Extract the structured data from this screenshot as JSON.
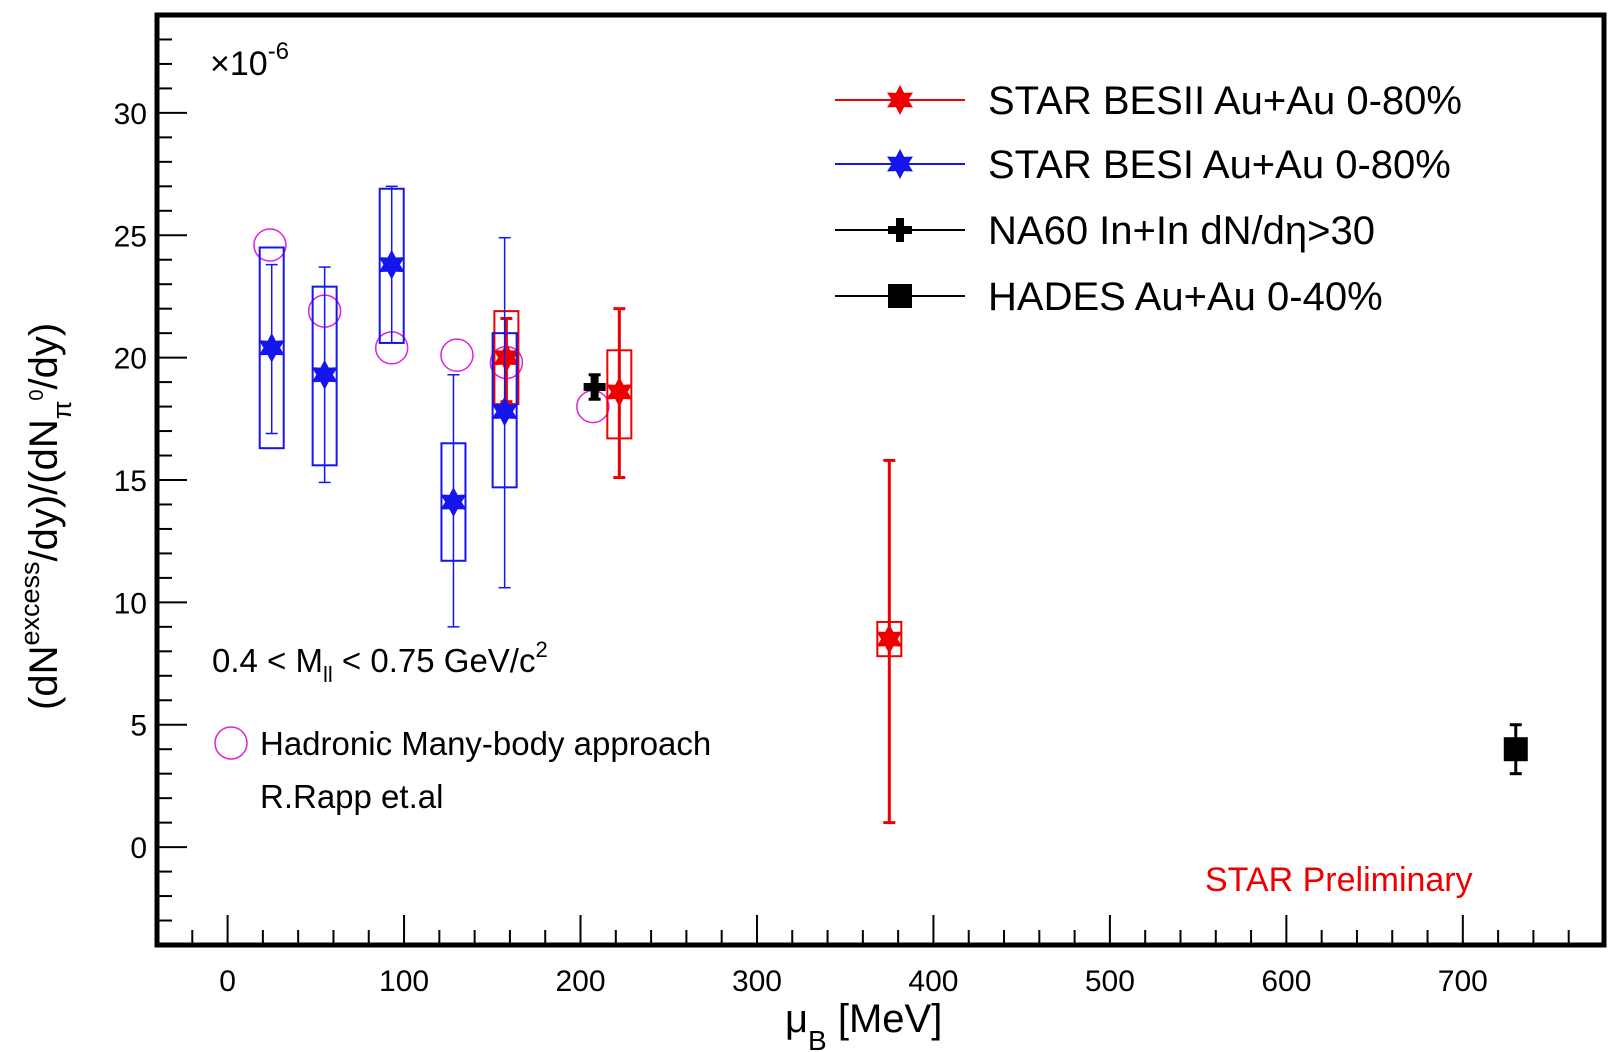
{
  "chart_data": {
    "type": "scatter",
    "title": "",
    "multiplier": {
      "base": "×10",
      "exponent": "-6"
    },
    "xlabel": {
      "main": "μ",
      "sub": "B",
      "rest": " [MeV]"
    },
    "ylabel": {
      "p1": "(dN",
      "sup1": "excess",
      "p2": "/dy)/(dN",
      "sub2": "π",
      "sup2": "0",
      "p3": "/dy)"
    },
    "xlim": [
      -40,
      780
    ],
    "ylim": [
      -4,
      34
    ],
    "xticks": [
      0,
      100,
      200,
      300,
      400,
      500,
      600,
      700
    ],
    "yticks": [
      0,
      5,
      10,
      15,
      20,
      25,
      30
    ],
    "series": [
      {
        "name": "STAR BESII Au+Au 0-80%",
        "color": "#ee0000",
        "marker": "star",
        "points": [
          {
            "x": 158,
            "y": 20.0,
            "stat": [
              18.2,
              21.6
            ],
            "sys": [
              18.1,
              21.9
            ]
          },
          {
            "x": 222,
            "y": 18.6,
            "stat": [
              15.1,
              22.0
            ],
            "sys": [
              16.7,
              20.3
            ]
          },
          {
            "x": 375,
            "y": 8.5,
            "stat": [
              1.0,
              15.8
            ],
            "sys": [
              7.8,
              9.2
            ]
          }
        ]
      },
      {
        "name": "STAR BESI Au+Au 0-80%",
        "color": "#1515ee",
        "marker": "star",
        "points": [
          {
            "x": 25,
            "y": 20.4,
            "stat": [
              16.9,
              23.8
            ],
            "sys": [
              16.3,
              24.5
            ]
          },
          {
            "x": 55,
            "y": 19.3,
            "stat": [
              14.9,
              23.7
            ],
            "sys": [
              15.6,
              22.9
            ]
          },
          {
            "x": 93,
            "y": 23.8,
            "stat": [
              20.6,
              27.0
            ],
            "sys": [
              20.6,
              26.9
            ]
          },
          {
            "x": 128,
            "y": 14.1,
            "stat": [
              9.0,
              19.3
            ],
            "sys": [
              11.7,
              16.5
            ]
          },
          {
            "x": 157,
            "y": 17.8,
            "stat": [
              10.6,
              24.9
            ],
            "sys": [
              14.7,
              21.0
            ]
          }
        ]
      },
      {
        "name": "NA60 In+In dN/dη>30",
        "color": "#000000",
        "marker": "cross",
        "points": [
          {
            "x": 208,
            "y": 18.8,
            "stat": [
              18.3,
              19.3
            ]
          }
        ]
      },
      {
        "name": "HADES Au+Au 0-40%",
        "color": "#000000",
        "marker": "square",
        "points": [
          {
            "x": 730,
            "y": 4.0,
            "stat": [
              3.0,
              5.0
            ]
          }
        ]
      },
      {
        "name": "Hadronic Many-body approach",
        "color": "#dd22dd",
        "marker": "open-circle",
        "points": [
          {
            "x": 24,
            "y": 24.6
          },
          {
            "x": 55,
            "y": 21.9
          },
          {
            "x": 93,
            "y": 20.4
          },
          {
            "x": 130,
            "y": 20.1
          },
          {
            "x": 158,
            "y": 19.8
          },
          {
            "x": 207,
            "y": 18.0
          }
        ]
      }
    ],
    "annotations": {
      "mass_range": {
        "p1": "0.4 < M",
        "sub": "ll",
        "p2": " < 0.75 GeV/c",
        "sup": "2"
      },
      "model_line1": "Hadronic Many-body approach",
      "model_line2": "R.Rapp et.al",
      "preliminary": "STAR Preliminary"
    }
  }
}
